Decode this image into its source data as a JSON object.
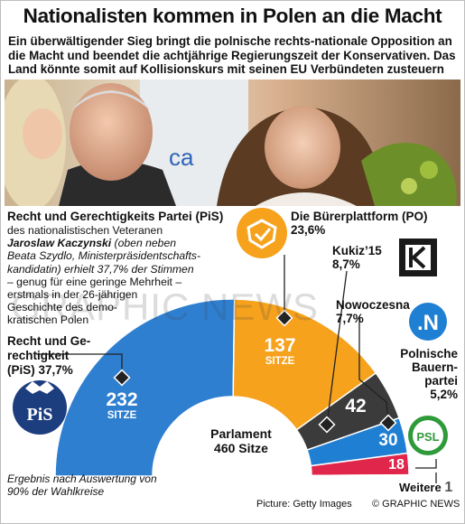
{
  "header": {
    "title": "Nationalisten kommen in Polen an die Macht",
    "subtitle_lines": [
      "Ein überwältigender Sieg bringt die polnische rechts-nationale Opposition an",
      "die Macht und beendet die achtjährige Regierungszeit der Konservativen. Das",
      "Land könnte somit auf Kollisionskurs mit seinen  EU Verbündeten zusteuern"
    ]
  },
  "photo": {
    "banner_text": "ca"
  },
  "pis": {
    "heading": "Recht und Gerechtigkeits Partei (PiS)",
    "lines": [
      "des nationalistischen Veteranen",
      "Jaroslaw Kaczynski",
      " (oben neben",
      "Beata Szydlo, Ministerpräsident",
      "schafts-",
      "kandidatin) erhielt 37,7% der Stimmen",
      "– genug für eine geringe Mehrheit –",
      "erstmals in der 26-jährigen",
      "Geschichte des demo-",
      "kratischen Polen"
    ],
    "short_name_lines": [
      "Recht und Ge-",
      "rechtigkeit"
    ],
    "short_name_last": "(PiS) 37,7%",
    "seats": "232",
    "logo_text": "PiS"
  },
  "po": {
    "name": "Die Bürerplattform (PO)",
    "pct": "23,6%",
    "seats": "137"
  },
  "kukiz": {
    "name": "Kukiz’15",
    "pct": "8,7%",
    "seats": "42"
  },
  "nowoczesna": {
    "name": "Nowoczesna",
    "pct": "7,7%",
    "seats": "30",
    "logo_text": ".N"
  },
  "psl": {
    "name_lines": [
      "Polnische",
      "Bauern-",
      "partei"
    ],
    "pct": "5,2%",
    "seats": "18",
    "logo_text": "PSL"
  },
  "weitere": {
    "label": "Weitere",
    "seats": "1"
  },
  "seats_word": "SITZE",
  "parliament": {
    "label": "Parlament",
    "total": "460 Sitze"
  },
  "note_lines": [
    "Ergebnis nach Auswertung von",
    "90% der Wahlkreise"
  ],
  "credit": "Picture: Getty Images",
  "copyright": "© GRAPHIC NEWS",
  "watermark": "GRAPHIC NEWS",
  "colors": {
    "pis": "#2f7fd1",
    "po": "#f6a21d",
    "kukiz": "#3b3b3b",
    "nowoczesna": "#1f7fd2",
    "psl": "#e0264b",
    "weitere": "#a8a8a8",
    "psl_logo": "#2e9a3a",
    "navy": "#1c3d7e"
  }
}
